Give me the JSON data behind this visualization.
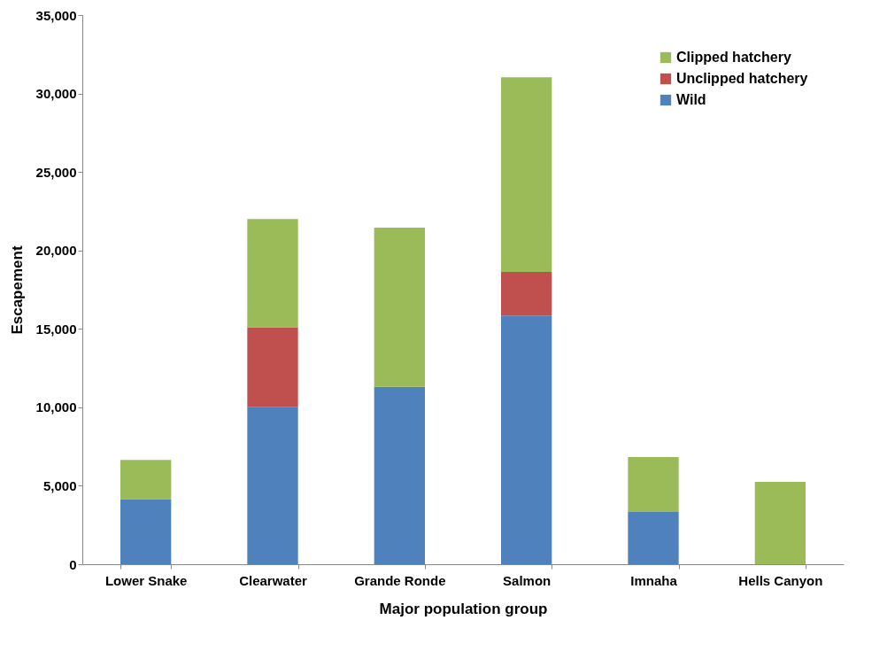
{
  "chart_data": {
    "type": "bar",
    "stacked": true,
    "xlabel": "Major population group",
    "ylabel": "Escapement",
    "categories": [
      "Lower Snake",
      "Clearwater",
      "Grande Ronde",
      "Salmon",
      "Imnaha",
      "Hells Canyon"
    ],
    "series": [
      {
        "name": "Wild",
        "color": "#4f81bd",
        "values": [
          4150,
          10000,
          11300,
          15850,
          3330,
          null
        ]
      },
      {
        "name": "Unclipped hatchery",
        "color": "#c0504d",
        "values": [
          null,
          5100,
          null,
          2780,
          null,
          null
        ]
      },
      {
        "name": "Clipped hatchery",
        "color": "#9bbb59",
        "values": [
          2500,
          6900,
          10150,
          12400,
          3500,
          5250
        ]
      }
    ],
    "ylim": [
      0,
      35000
    ],
    "yticks": [
      0,
      {
        "value": 5000,
        "label": "5,000"
      },
      {
        "value": 10000,
        "label": "10,000"
      },
      {
        "value": 15000,
        "label": "15,000"
      },
      {
        "value": 20000,
        "label": "20,000"
      },
      {
        "value": 25000,
        "label": "25,000"
      },
      {
        "value": 30000,
        "label": "30,000"
      },
      {
        "value": 35000,
        "label": "35,000"
      }
    ],
    "grid": false,
    "legend": "top right"
  }
}
